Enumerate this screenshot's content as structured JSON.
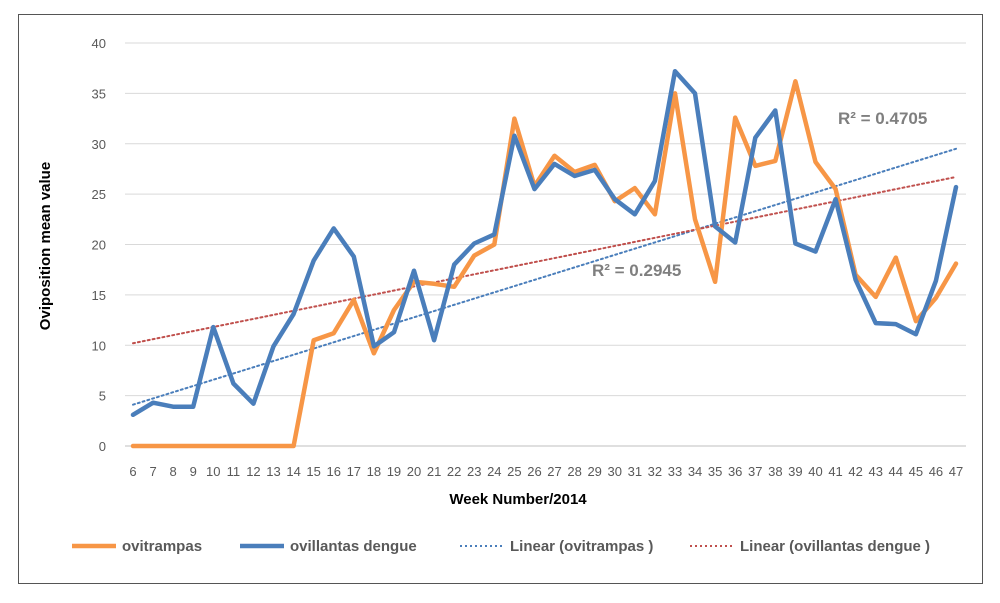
{
  "chart_data": {
    "type": "line",
    "title": "",
    "xlabel": "Week Number/2014",
    "ylabel": "Oviposition mean value",
    "ylim": [
      0,
      40
    ],
    "yticks": [
      0,
      5,
      10,
      15,
      20,
      25,
      30,
      35,
      40
    ],
    "grid": "horizontal",
    "legend_position": "bottom",
    "x": [
      6,
      7,
      8,
      9,
      10,
      11,
      12,
      13,
      14,
      15,
      16,
      17,
      18,
      19,
      20,
      21,
      22,
      23,
      24,
      25,
      26,
      27,
      28,
      29,
      30,
      31,
      32,
      33,
      34,
      35,
      36,
      37,
      38,
      39,
      40,
      41,
      42,
      43,
      44,
      45,
      46,
      47
    ],
    "series": [
      {
        "name": "ovitrampas",
        "color": "#f79646",
        "style": "solid",
        "values": [
          0,
          0,
          0,
          0,
          0,
          0,
          0,
          0,
          0,
          10.5,
          11.2,
          14.5,
          9.2,
          13.5,
          16.3,
          16.1,
          15.8,
          18.9,
          20.0,
          32.5,
          25.8,
          28.8,
          27.2,
          27.9,
          24.3,
          25.6,
          23.0,
          35.0,
          22.5,
          16.3,
          32.6,
          27.8,
          28.3,
          36.2,
          28.2,
          25.5,
          17.0,
          14.8,
          18.7,
          12.4,
          14.7,
          18.1
        ]
      },
      {
        "name": "ovillantas dengue",
        "color": "#4a7ebb",
        "style": "solid",
        "values": [
          3.1,
          4.3,
          3.9,
          3.9,
          11.8,
          6.2,
          4.2,
          9.9,
          13.1,
          18.4,
          21.6,
          18.8,
          9.9,
          11.3,
          17.4,
          10.5,
          18.0,
          20.1,
          21.0,
          30.8,
          25.5,
          28.0,
          26.8,
          27.4,
          24.5,
          23.0,
          26.3,
          37.2,
          35.0,
          21.8,
          20.2,
          30.6,
          33.3,
          20.1,
          19.3,
          24.5,
          16.5,
          12.2,
          12.1,
          11.1,
          16.4,
          25.7
        ]
      }
    ],
    "trendlines": [
      {
        "name": "Linear (ovitrampas )",
        "color": "#4a7ebb",
        "style": "dotted",
        "start": 4.1,
        "end": 29.5,
        "r2_label": "R² = 0.4705"
      },
      {
        "name": "Linear (ovillantas dengue )",
        "color": "#c0504d",
        "style": "dotted",
        "start": 10.2,
        "end": 26.7,
        "r2_label": "R² = 0.2945"
      }
    ]
  }
}
